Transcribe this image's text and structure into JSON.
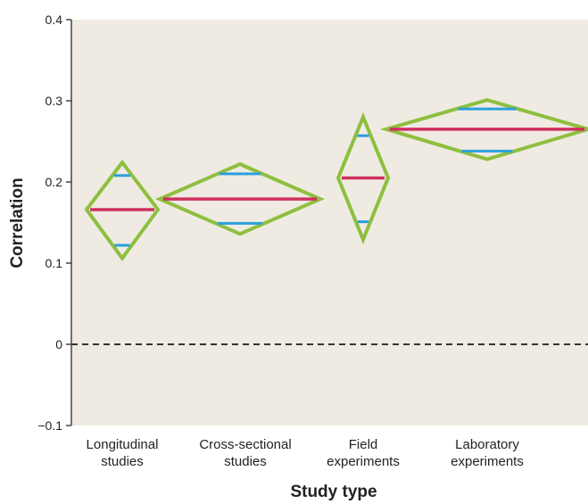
{
  "chart_data": {
    "type": "diamond-interval",
    "xlabel": "Study type",
    "ylabel": "Correlation",
    "ylim": [
      -0.1,
      0.4
    ],
    "yticks": [
      {
        "value": -0.1,
        "label": "−0.1"
      },
      {
        "value": 0,
        "label": "0"
      },
      {
        "value": 0.1,
        "label": "0.1"
      },
      {
        "value": 0.2,
        "label": "0.2"
      },
      {
        "value": 0.3,
        "label": "0.3"
      },
      {
        "value": 0.4,
        "label": "0.4"
      }
    ],
    "reference_line": {
      "y": 0,
      "style": "dashed"
    },
    "categories": [
      {
        "label_lines": [
          "Longitudinal",
          "studies"
        ],
        "mean": 0.166,
        "ci_low": 0.106,
        "ci_high": 0.224,
        "inner_low": 0.122,
        "inner_high": 0.208
      },
      {
        "label_lines": [
          "Cross-sectional",
          "studies"
        ],
        "mean": 0.179,
        "ci_low": 0.136,
        "ci_high": 0.222,
        "inner_low": 0.149,
        "inner_high": 0.21
      },
      {
        "label_lines": [
          "Field",
          "experiments"
        ],
        "mean": 0.205,
        "ci_low": 0.129,
        "ci_high": 0.28,
        "inner_low": 0.151,
        "inner_high": 0.257
      },
      {
        "label_lines": [
          "Laboratory",
          "experiments"
        ],
        "mean": 0.265,
        "ci_low": 0.228,
        "ci_high": 0.301,
        "inner_low": 0.238,
        "inner_high": 0.29
      }
    ],
    "grid": false,
    "colors": {
      "plot_background": "#efebe2",
      "diamond_outline": "#8ebf3f",
      "mean_line": "#cf2f5f",
      "inner_lines": "#2b9fdc",
      "axis": "#444444",
      "zero_line": "#333333"
    }
  }
}
